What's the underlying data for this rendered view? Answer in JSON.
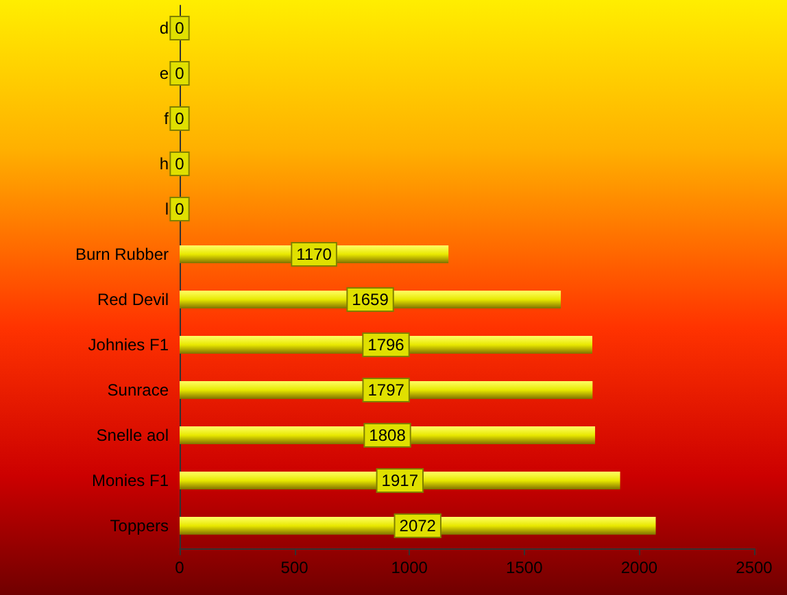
{
  "chart_data": {
    "type": "bar",
    "orientation": "horizontal",
    "categories": [
      "d",
      "e",
      "f",
      "h",
      "l",
      "Burn Rubber",
      "Red Devil",
      "Johnies F1",
      "Sunrace",
      "Snelle aol",
      "Monies F1",
      "Toppers"
    ],
    "values": [
      0,
      0,
      0,
      0,
      0,
      1170,
      1659,
      1796,
      1797,
      1808,
      1917,
      2072
    ],
    "color": "#e8e800",
    "xlim": [
      0,
      2500
    ],
    "xticks": [
      0,
      500,
      1000,
      1500,
      2000,
      2500
    ],
    "grid": false,
    "data_labels": true
  }
}
